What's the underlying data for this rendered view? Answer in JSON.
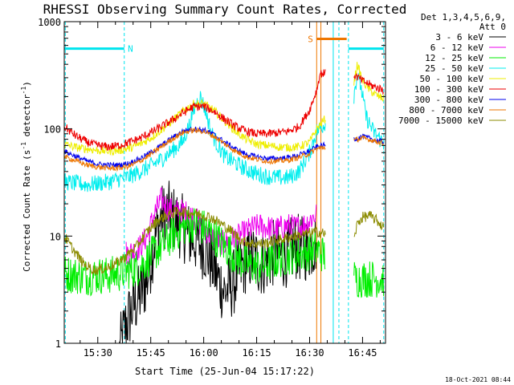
{
  "chart_data": {
    "type": "line",
    "title": "RHESSI Observing Summary Count Rates, Corrected",
    "xlabel": "Start Time (25-Jun-04 15:17:22)",
    "ylabel_main": "Corrected Count Rate (s",
    "ylabel_sup1": "-1",
    "ylabel_mid": " detector",
    "ylabel_sup2": "-1",
    "ylabel_end": ")",
    "yscale": "log",
    "ylim": [
      1,
      1000
    ],
    "xlim_min": [
      -9.5,
      81.5
    ],
    "x_unit": "minutes after 15:30",
    "x_ticks": [
      {
        "v": 0,
        "label": "15:30"
      },
      {
        "v": 15,
        "label": "15:45"
      },
      {
        "v": 30,
        "label": "16:00"
      },
      {
        "v": 45,
        "label": "16:15"
      },
      {
        "v": 60,
        "label": "16:30"
      },
      {
        "v": 75,
        "label": "16:45"
      }
    ],
    "y_ticks": [
      {
        "v": 1,
        "label": "1"
      },
      {
        "v": 10,
        "label": "10"
      },
      {
        "v": 100,
        "label": "100"
      },
      {
        "v": 1000,
        "label": "1000"
      }
    ],
    "legend_header": [
      "Det 1,3,4,5,6,9,",
      "Att 0"
    ],
    "footer_date": "18-Oct-2021 08:44",
    "flags": [
      {
        "name": "night",
        "letter": "N",
        "color": "#00e5ee",
        "y": 560,
        "x_start": -9.5,
        "x_end": 7.5,
        "label_x": 8.5
      },
      {
        "name": "night-2",
        "letter": "",
        "color": "#00e5ee",
        "y": 560,
        "x_start": 71,
        "x_end": 81,
        "label_x": 0
      },
      {
        "name": "saa",
        "letter": "S",
        "color": "#ee7600",
        "y": 690,
        "x_start": 62,
        "x_end": 70.5,
        "label_x": 59.5
      }
    ],
    "vlines": [
      {
        "x": -9.2,
        "color": "#00e5ee",
        "dash": true
      },
      {
        "x": 7.5,
        "color": "#00e5ee",
        "dash": true
      },
      {
        "x": 62,
        "color": "#ee7600",
        "dash": false
      },
      {
        "x": 63.2,
        "color": "#ee7600",
        "dash": false
      },
      {
        "x": 66.7,
        "color": "#00e5ee",
        "dash": false
      },
      {
        "x": 68.3,
        "color": "#00e5ee",
        "dash": true
      },
      {
        "x": 71,
        "color": "#00e5ee",
        "dash": true
      },
      {
        "x": 81,
        "color": "#00e5ee",
        "dash": true
      }
    ],
    "gap": [
      64.5,
      72.5
    ],
    "series": [
      {
        "name": "3 - 6 keV",
        "color": "#000000",
        "noise": 0.32,
        "x": [
          -9.5,
          0,
          2,
          4,
          6,
          8,
          10,
          12,
          14,
          16,
          18,
          20,
          22,
          24,
          26,
          28,
          30,
          32,
          34,
          36,
          38,
          40,
          42,
          44,
          46,
          48,
          50,
          52,
          54,
          56,
          58,
          60,
          62
        ],
        "y": [
          null,
          null,
          null,
          null,
          0.8,
          1.5,
          2.2,
          2.8,
          4,
          9,
          15,
          16,
          14,
          12,
          10,
          9,
          8,
          6,
          4,
          3,
          3.5,
          4.5,
          6,
          6.5,
          5.5,
          6,
          7,
          6.5,
          7,
          8,
          7.5,
          8,
          9
        ]
      },
      {
        "name": "6 - 12 keV",
        "color": "#ee00ee",
        "noise": 0.12,
        "x": [
          -9.5,
          -6,
          -3,
          0,
          3,
          6,
          8,
          10,
          12,
          14,
          16,
          18,
          20,
          22,
          24,
          26,
          28,
          30,
          32,
          34,
          36,
          38,
          40,
          42,
          44,
          46,
          48,
          50,
          52,
          54,
          56,
          58,
          60,
          62
        ],
        "y": [
          null,
          null,
          null,
          null,
          null,
          null,
          7,
          7.2,
          8,
          10,
          16,
          22,
          18,
          17,
          17,
          16,
          14,
          12,
          10,
          9,
          8.5,
          9.5,
          10,
          11,
          12,
          12.5,
          12,
          11.5,
          12,
          12.5,
          12,
          12.5,
          14,
          16
        ]
      },
      {
        "name": "12 - 25 keV",
        "color": "#00ee00",
        "noise": 0.18,
        "x": [
          -9.5,
          -6,
          -3,
          0,
          3,
          6,
          9,
          12,
          15,
          18,
          21,
          24,
          27,
          30,
          33,
          36,
          39,
          42,
          45,
          48,
          51,
          54,
          57,
          60,
          62,
          73,
          76,
          79,
          81
        ],
        "y": [
          4.5,
          4.3,
          4.2,
          4.3,
          4.3,
          4.5,
          4.8,
          5.2,
          6.5,
          8,
          10,
          12,
          13,
          12,
          10,
          8,
          6.5,
          5.5,
          5.2,
          5.5,
          6,
          6.5,
          6.8,
          7.2,
          7.5,
          4,
          4,
          4,
          4
        ]
      },
      {
        "name": "25 - 50 keV",
        "color": "#00eeee",
        "noise": 0.08,
        "x": [
          -9.5,
          -6,
          -3,
          0,
          3,
          6,
          9,
          12,
          15,
          18,
          21,
          24,
          26,
          27.5,
          29,
          30.5,
          32,
          34,
          36,
          39,
          42,
          45,
          48,
          51,
          54,
          57,
          60,
          62,
          72.5,
          73.5,
          74.5,
          76,
          78,
          80,
          81
        ],
        "y": [
          32,
          31,
          30,
          31,
          32,
          34,
          36,
          40,
          45,
          52,
          62,
          75,
          110,
          160,
          200,
          150,
          95,
          70,
          55,
          48,
          42,
          38,
          36,
          35,
          35,
          40,
          60,
          95,
          200,
          330,
          250,
          130,
          95,
          80,
          72
        ]
      },
      {
        "name": "50 - 100 keV",
        "color": "#eeee00",
        "noise": 0.04,
        "x": [
          -9.5,
          -6,
          -3,
          0,
          3,
          6,
          9,
          12,
          15,
          18,
          21,
          24,
          27,
          30,
          33,
          36,
          39,
          42,
          45,
          48,
          51,
          54,
          57,
          60,
          62,
          72.5,
          73.5,
          75,
          77,
          79,
          81
        ],
        "y": [
          72,
          67,
          65,
          63,
          62,
          63,
          66,
          72,
          82,
          98,
          118,
          145,
          170,
          172,
          148,
          118,
          95,
          80,
          72,
          70,
          68,
          67,
          68,
          75,
          100,
          260,
          400,
          280,
          230,
          205,
          190
        ]
      },
      {
        "name": "100 - 300 keV",
        "color": "#ee0000",
        "noise": 0.04,
        "x": [
          -9.5,
          -6,
          -3,
          0,
          3,
          6,
          9,
          12,
          15,
          18,
          21,
          24,
          27,
          30,
          33,
          36,
          39,
          42,
          45,
          48,
          51,
          54,
          57,
          60,
          62,
          63,
          72.5,
          75,
          78,
          81
        ],
        "y": [
          105,
          85,
          75,
          70,
          68,
          70,
          75,
          82,
          92,
          105,
          120,
          140,
          160,
          162,
          145,
          122,
          105,
          95,
          90,
          90,
          92,
          95,
          105,
          150,
          230,
          330,
          320,
          280,
          250,
          230
        ]
      },
      {
        "name": "300 - 800 keV",
        "color": "#0000ee",
        "noise": 0.025,
        "x": [
          -9.5,
          -6,
          -3,
          0,
          3,
          6,
          9,
          12,
          15,
          18,
          21,
          24,
          27,
          30,
          33,
          36,
          39,
          42,
          45,
          48,
          51,
          54,
          57,
          60,
          62,
          72.5,
          75,
          78,
          81
        ],
        "y": [
          62,
          55,
          50,
          47,
          46,
          46,
          48,
          53,
          60,
          70,
          82,
          95,
          100,
          98,
          88,
          75,
          65,
          58,
          55,
          53,
          53,
          54,
          57,
          62,
          68,
          80,
          85,
          80,
          75
        ]
      },
      {
        "name": "800 - 7000 keV",
        "color": "#ee7600",
        "noise": 0.025,
        "x": [
          -9.5,
          -6,
          -3,
          0,
          3,
          6,
          9,
          12,
          15,
          18,
          21,
          24,
          27,
          30,
          33,
          36,
          39,
          42,
          45,
          48,
          51,
          54,
          57,
          60,
          62,
          72.5,
          75,
          78,
          81
        ],
        "y": [
          55,
          50,
          46,
          44,
          43,
          43,
          45,
          50,
          58,
          68,
          80,
          92,
          97,
          95,
          85,
          72,
          62,
          55,
          52,
          50,
          50,
          51,
          54,
          59,
          65,
          78,
          82,
          78,
          73
        ]
      },
      {
        "name": "7000 - 15000 keV",
        "color": "#8b8b00",
        "noise": 0.05,
        "x": [
          -9.5,
          -7,
          -4,
          -1,
          2,
          5,
          8,
          11,
          14,
          17,
          20,
          23,
          26,
          29,
          32,
          35,
          38,
          41,
          44,
          47,
          50,
          53,
          56,
          59,
          62,
          72.5,
          73.5,
          75,
          77,
          79,
          81
        ],
        "y": [
          10,
          7.5,
          5.5,
          4.8,
          5,
          5.5,
          6.5,
          8,
          11,
          14,
          16,
          17,
          16.5,
          16,
          15,
          13,
          11,
          9,
          8.5,
          8.5,
          9,
          9.5,
          10,
          10.5,
          11,
          9,
          13,
          15,
          15.5,
          14,
          12
        ]
      }
    ]
  }
}
